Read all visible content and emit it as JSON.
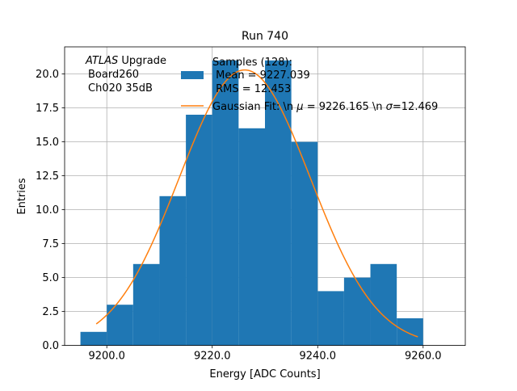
{
  "chart_data": {
    "type": "bar",
    "title": "Run 740",
    "xlabel": "Energy [ADC Counts]",
    "ylabel": "Entries",
    "xlim": [
      9192.0,
      9268.0
    ],
    "ylim": [
      0,
      22.0
    ],
    "grid": true,
    "xticks": [
      {
        "value": 9200,
        "label": "9200.0"
      },
      {
        "value": 9220,
        "label": "9220.0"
      },
      {
        "value": 9240,
        "label": "9240.0"
      },
      {
        "value": 9260,
        "label": "9260.0"
      }
    ],
    "yticks": [
      {
        "value": 0,
        "label": "0.0"
      },
      {
        "value": 2.5,
        "label": "2.5"
      },
      {
        "value": 5,
        "label": "5.0"
      },
      {
        "value": 7.5,
        "label": "7.5"
      },
      {
        "value": 10,
        "label": "10.0"
      },
      {
        "value": 12.5,
        "label": "12.5"
      },
      {
        "value": 15,
        "label": "15.0"
      },
      {
        "value": 17.5,
        "label": "17.5"
      },
      {
        "value": 20,
        "label": "20.0"
      }
    ],
    "histogram": {
      "bin_edges": [
        9195,
        9200,
        9205,
        9210,
        9215,
        9220,
        9225,
        9230,
        9235,
        9240,
        9245,
        9250,
        9255,
        9260
      ],
      "counts": [
        1,
        3,
        6,
        11,
        17,
        21,
        16,
        21,
        15,
        4,
        5,
        6,
        2
      ],
      "color": "#1f77b4"
    },
    "fit": {
      "mu": 9226.165,
      "sigma": 12.469,
      "amplitude": 20.3,
      "x_range": [
        9198,
        9259
      ],
      "color": "#ff7f0e"
    },
    "annotation_lines": [
      "ATLAS Upgrade",
      "Board260",
      "Ch020 35dB"
    ],
    "annotation_italic_word": "ATLAS",
    "annotation_rest": " Upgrade",
    "legend": {
      "placement": "top-right",
      "hist_lines": [
        "Samples (128):",
        " Mean = 9227.039",
        " RMS = 12.453"
      ],
      "fit_prefix": "Gaussian Fit: \\n ",
      "fit_mu_symbol": "μ",
      "fit_middle": " = 9226.165 \\n ",
      "fit_sigma_symbol": "σ",
      "fit_suffix": "=12.469"
    }
  }
}
